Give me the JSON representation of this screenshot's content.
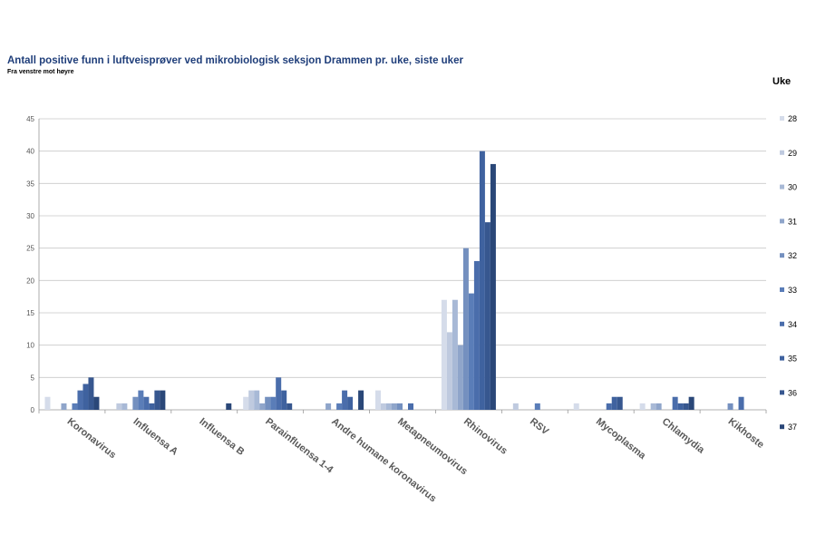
{
  "chart_data": {
    "type": "bar",
    "title": "Antall positive funn i luftveisprøver ved mikrobiologisk seksjon Drammen pr. uke, siste uker",
    "subtitle": "Fra venstre mot høyre",
    "legend_title": "Uke",
    "legend_position": "right",
    "ylim": [
      0,
      45
    ],
    "yticks": [
      0,
      5,
      10,
      15,
      20,
      25,
      30,
      35,
      40,
      45
    ],
    "grid": true,
    "categories": [
      "Koronavirus",
      "Influensa A",
      "Influensa B",
      "Parainfluensa 1-4",
      "Andre humane koronavirus",
      "Metapneumovirus",
      "Rhinovirus",
      "RSV",
      "Mycoplasma",
      "Chlamydia",
      "Kikhoste"
    ],
    "series": [
      {
        "name": "28",
        "color": "#d5dcea",
        "values": [
          2,
          0,
          0,
          2,
          0,
          3,
          17,
          0,
          1,
          1,
          0
        ]
      },
      {
        "name": "29",
        "color": "#bfcadf",
        "values": [
          0,
          1,
          0,
          3,
          0,
          1,
          12,
          1,
          0,
          0,
          0
        ]
      },
      {
        "name": "30",
        "color": "#a8b9d6",
        "values": [
          0,
          1,
          0,
          3,
          0,
          1,
          17,
          0,
          0,
          1,
          0
        ]
      },
      {
        "name": "31",
        "color": "#8fa5ca",
        "values": [
          1,
          0,
          0,
          1,
          1,
          1,
          10,
          0,
          0,
          1,
          0
        ]
      },
      {
        "name": "32",
        "color": "#7490bf",
        "values": [
          0,
          2,
          0,
          2,
          0,
          1,
          25,
          0,
          0,
          0,
          1
        ]
      },
      {
        "name": "33",
        "color": "#5a7db8",
        "values": [
          1,
          3,
          0,
          2,
          1,
          0,
          18,
          1,
          0,
          0,
          0
        ]
      },
      {
        "name": "34",
        "color": "#4a6dab",
        "values": [
          3,
          2,
          0,
          5,
          3,
          1,
          23,
          0,
          1,
          2,
          2
        ]
      },
      {
        "name": "35",
        "color": "#3f629f",
        "values": [
          4,
          1,
          0,
          3,
          2,
          0,
          40,
          0,
          2,
          1,
          0
        ]
      },
      {
        "name": "36",
        "color": "#37578f",
        "values": [
          5,
          3,
          0,
          1,
          0,
          0,
          29,
          0,
          2,
          1,
          0
        ]
      },
      {
        "name": "37",
        "color": "#2a4778",
        "values": [
          2,
          3,
          1,
          0,
          3,
          0,
          38,
          0,
          0,
          2,
          0
        ]
      }
    ]
  }
}
